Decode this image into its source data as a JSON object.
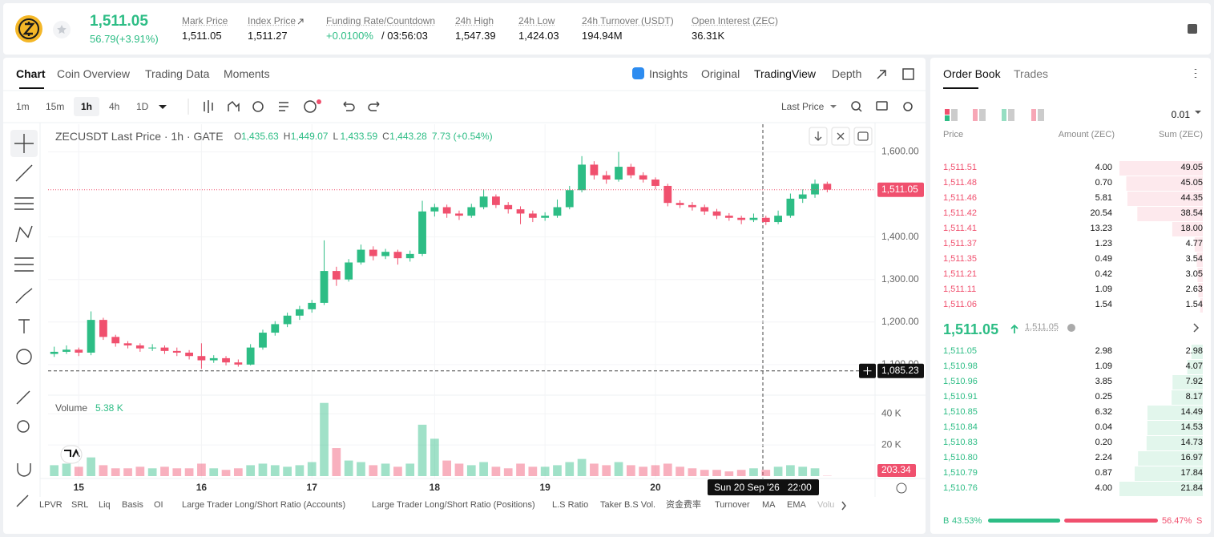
{
  "header": {
    "price": "1,511.05",
    "change": "56.79(+3.91%)",
    "stats": [
      {
        "label": "Mark Price",
        "value": "1,511.05"
      },
      {
        "label": "Index Price",
        "value": "1,511.27"
      },
      {
        "label": "Funding Rate/Countdown",
        "value": "+0.0100%",
        "value2": "/ 03:56:03"
      },
      {
        "label": "24h High",
        "value": "1,547.39"
      },
      {
        "label": "24h Low",
        "value": "1,424.03"
      },
      {
        "label": "24h Turnover (USDT)",
        "value": "194.94M"
      },
      {
        "label": "Open Interest (ZEC)",
        "value": "36.31K"
      }
    ]
  },
  "chart_tabs": [
    "Chart",
    "Coin Overview",
    "Trading Data",
    "Moments"
  ],
  "view_tabs": [
    "Insights",
    "Original",
    "TradingView",
    "Depth"
  ],
  "intervals": [
    "1m",
    "15m",
    "1h",
    "4h",
    "1D"
  ],
  "price_type": "Last Price",
  "chart_data": {
    "type": "candlestick",
    "legend": {
      "symbol": "ZECUSDT Last Price · 1h · GATE",
      "fields": [
        {
          "key": "O",
          "value": "1,435.63"
        },
        {
          "key": "H",
          "value": "1,449.07"
        },
        {
          "key": "L",
          "value": "1,433.59"
        },
        {
          "key": "C",
          "value": "1,443.28"
        }
      ],
      "change": "7.73 (+0.54%)"
    },
    "up_color": "#2dbd85",
    "down_color": "#f0506e",
    "grid": true,
    "categories": [
      null,
      null,
      "15",
      null,
      null,
      null,
      null,
      null,
      null,
      null,
      null,
      null,
      "16",
      null,
      null,
      null,
      null,
      null,
      null,
      null,
      null,
      "17",
      null,
      null,
      null,
      null,
      null,
      null,
      null,
      null,
      null,
      "18",
      null,
      null,
      null,
      null,
      null,
      null,
      null,
      null,
      "19",
      null,
      null,
      null,
      null,
      null,
      null,
      null,
      null,
      "20",
      null,
      null,
      null,
      null,
      null,
      null,
      null,
      null,
      null,
      null,
      null,
      null,
      null,
      null
    ],
    "candles": [
      [
        1125,
        1142,
        1118,
        1130
      ],
      [
        1130,
        1145,
        1125,
        1135
      ],
      [
        1135,
        1140,
        1120,
        1128
      ],
      [
        1128,
        1225,
        1122,
        1205
      ],
      [
        1205,
        1210,
        1158,
        1165
      ],
      [
        1165,
        1170,
        1142,
        1150
      ],
      [
        1150,
        1155,
        1138,
        1145
      ],
      [
        1145,
        1150,
        1130,
        1138
      ],
      [
        1138,
        1148,
        1132,
        1140
      ],
      [
        1140,
        1145,
        1125,
        1132
      ],
      [
        1132,
        1140,
        1120,
        1128
      ],
      [
        1128,
        1134,
        1112,
        1120
      ],
      [
        1120,
        1150,
        1090,
        1110
      ],
      [
        1110,
        1122,
        1104,
        1115
      ],
      [
        1115,
        1120,
        1098,
        1105
      ],
      [
        1105,
        1112,
        1095,
        1100
      ],
      [
        1100,
        1148,
        1098,
        1140
      ],
      [
        1140,
        1182,
        1135,
        1175
      ],
      [
        1175,
        1202,
        1168,
        1195
      ],
      [
        1195,
        1222,
        1188,
        1215
      ],
      [
        1215,
        1238,
        1205,
        1230
      ],
      [
        1230,
        1252,
        1222,
        1245
      ],
      [
        1245,
        1392,
        1240,
        1320
      ],
      [
        1320,
        1330,
        1285,
        1300
      ],
      [
        1300,
        1348,
        1295,
        1340
      ],
      [
        1340,
        1382,
        1335,
        1370
      ],
      [
        1370,
        1378,
        1345,
        1355
      ],
      [
        1355,
        1372,
        1348,
        1365
      ],
      [
        1365,
        1370,
        1335,
        1350
      ],
      [
        1350,
        1368,
        1342,
        1360
      ],
      [
        1360,
        1485,
        1355,
        1460
      ],
      [
        1460,
        1478,
        1448,
        1470
      ],
      [
        1470,
        1476,
        1445,
        1455
      ],
      [
        1455,
        1462,
        1440,
        1450
      ],
      [
        1450,
        1478,
        1445,
        1470
      ],
      [
        1470,
        1512,
        1465,
        1495
      ],
      [
        1495,
        1500,
        1468,
        1475
      ],
      [
        1475,
        1482,
        1455,
        1465
      ],
      [
        1465,
        1472,
        1430,
        1455
      ],
      [
        1455,
        1462,
        1435,
        1445
      ],
      [
        1445,
        1458,
        1438,
        1450
      ],
      [
        1450,
        1488,
        1445,
        1470
      ],
      [
        1470,
        1520,
        1465,
        1510
      ],
      [
        1510,
        1590,
        1505,
        1570
      ],
      [
        1570,
        1578,
        1535,
        1545
      ],
      [
        1545,
        1555,
        1525,
        1535
      ],
      [
        1535,
        1600,
        1530,
        1565
      ],
      [
        1565,
        1572,
        1538,
        1545
      ],
      [
        1545,
        1552,
        1528,
        1535
      ],
      [
        1535,
        1540,
        1512,
        1520
      ],
      [
        1520,
        1525,
        1472,
        1480
      ],
      [
        1480,
        1486,
        1468,
        1475
      ],
      [
        1475,
        1482,
        1462,
        1470
      ],
      [
        1470,
        1476,
        1452,
        1460
      ],
      [
        1460,
        1466,
        1442,
        1450
      ],
      [
        1450,
        1456,
        1438,
        1445
      ],
      [
        1445,
        1450,
        1430,
        1440
      ],
      [
        1440,
        1455,
        1435,
        1445
      ],
      [
        1445,
        1450,
        1428,
        1435
      ],
      [
        1435,
        1462,
        1430,
        1450
      ],
      [
        1450,
        1502,
        1445,
        1490
      ],
      [
        1490,
        1512,
        1480,
        1500
      ],
      [
        1500,
        1535,
        1492,
        1525
      ],
      [
        1525,
        1530,
        1505,
        1511
      ]
    ],
    "ylim": [
      1030,
      1665
    ],
    "yticks": [
      {
        "value": 1600,
        "label": "1,600.00"
      },
      {
        "value": 1400,
        "label": "1,400.00"
      },
      {
        "value": 1300,
        "label": "1,300.00"
      },
      {
        "value": 1200,
        "label": "1,200.00"
      },
      {
        "value": 1100,
        "label": "1,100.00"
      }
    ],
    "last_price": {
      "value": 1511.05,
      "label": "1,511.05"
    },
    "crosshair": {
      "value": 1085.23,
      "label": "1,085.23",
      "time": "Sun 20 Sep '26   22:00"
    },
    "volume_title": "Volume",
    "volume_legend": "5.38 K",
    "volume": [
      7,
      8,
      6,
      12,
      7,
      5,
      5,
      6,
      5,
      6,
      5,
      5,
      8,
      5,
      4,
      5,
      7,
      8,
      7,
      6,
      7,
      9,
      47,
      18,
      10,
      9,
      7,
      8,
      6,
      8,
      33,
      24,
      10,
      8,
      7,
      9,
      6,
      5,
      8,
      6,
      6,
      7,
      9,
      11,
      8,
      7,
      9,
      7,
      6,
      7,
      8,
      6,
      5,
      4,
      4,
      3,
      4,
      5,
      4,
      6,
      7,
      6,
      5,
      0.20334
    ],
    "vylim": [
      0,
      52
    ],
    "vyticks": [
      {
        "value": 40,
        "label": "40 K"
      },
      {
        "value": 20,
        "label": "20 K"
      }
    ],
    "current_volume": {
      "value": 0.20334,
      "label": "203.34"
    }
  },
  "indicators": [
    "LPVR",
    "SRL",
    "Liq",
    "Basis",
    "OI",
    "Large Trader Long/Short Ratio (Accounts)",
    "Large Trader Long/Short Ratio (Positions)",
    "L.S Ratio",
    "Taker B.S Vol.",
    "资金费率",
    "Turnover",
    "MA",
    "EMA",
    "Volu"
  ],
  "order_book": {
    "tabs": [
      "Order Book",
      "Trades"
    ],
    "precision": "0.01",
    "columns": [
      "Price",
      "Amount (ZEC)",
      "Sum (ZEC)"
    ],
    "asks": [
      [
        "1,511.51",
        "4.00",
        49.05
      ],
      [
        "1,511.48",
        "0.70",
        45.05
      ],
      [
        "1,511.46",
        "5.81",
        44.35
      ],
      [
        "1,511.42",
        "20.54",
        38.54
      ],
      [
        "1,511.41",
        "13.23",
        18.0
      ],
      [
        "1,511.37",
        "1.23",
        4.77
      ],
      [
        "1,511.35",
        "0.49",
        3.54
      ],
      [
        "1,511.21",
        "0.42",
        3.05
      ],
      [
        "1,511.11",
        "1.09",
        2.63
      ],
      [
        "1,511.06",
        "1.54",
        1.54
      ]
    ],
    "ask_sum_labels": [
      "49.05",
      "45.05",
      "44.35",
      "38.54",
      "18.00",
      "4.77",
      "3.54",
      "3.05",
      "2.63",
      "1.54"
    ],
    "mid_price": "1,511.05",
    "mid_index": "1,511.05",
    "bids": [
      [
        "1,511.05",
        "2.98",
        2.98
      ],
      [
        "1,510.98",
        "1.09",
        4.07
      ],
      [
        "1,510.96",
        "3.85",
        7.92
      ],
      [
        "1,510.91",
        "0.25",
        8.17
      ],
      [
        "1,510.85",
        "6.32",
        14.49
      ],
      [
        "1,510.84",
        "0.04",
        14.53
      ],
      [
        "1,510.83",
        "0.20",
        14.73
      ],
      [
        "1,510.80",
        "2.24",
        16.97
      ],
      [
        "1,510.79",
        "0.87",
        17.84
      ],
      [
        "1,510.76",
        "4.00",
        21.84
      ]
    ],
    "bid_sum_labels": [
      "2.98",
      "4.07",
      "7.92",
      "8.17",
      "14.49",
      "14.53",
      "14.73",
      "16.97",
      "17.84",
      "21.84"
    ],
    "ratio": {
      "buy_key": "B",
      "buy": 43.53,
      "buy_label": "43.53%",
      "sell": 56.47,
      "sell_label": "56.47%",
      "sell_key": "S"
    }
  }
}
